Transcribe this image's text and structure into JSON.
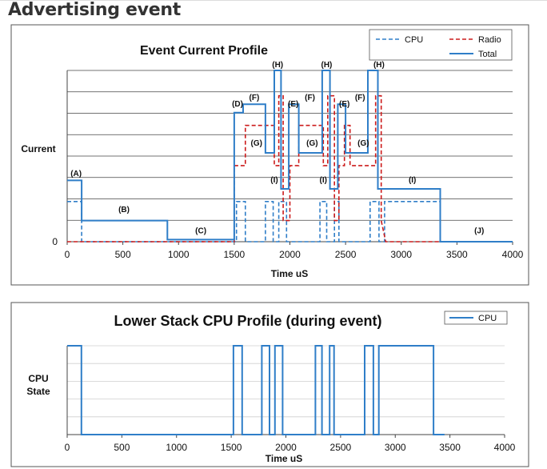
{
  "page": {
    "title": "Advertising event"
  },
  "colors": {
    "cpu": "#2f7ec8",
    "radio": "#cc1b1b",
    "total": "#2f7ec8",
    "grid": "#333333",
    "frame": "#555555"
  },
  "chart_data": [
    {
      "type": "line",
      "title": "Event Current Profile",
      "xlabel": "Time uS",
      "ylabel": "Current",
      "xlim": [
        0,
        4000
      ],
      "ylim": [
        0,
        8.1
      ],
      "xticks": [
        0,
        500,
        1000,
        1500,
        2000,
        2500,
        3000,
        3500,
        4000
      ],
      "yticks": [
        "0"
      ],
      "grid": true,
      "legend": "top-right",
      "series": [
        {
          "name": "CPU",
          "style": "dashed",
          "color": "#2f7ec8",
          "x": [
            0,
            130,
            130,
            1520,
            1520,
            1600,
            1600,
            1780,
            1780,
            1850,
            1850,
            1900,
            1900,
            1970,
            1970,
            2270,
            2270,
            2330,
            2330,
            2400,
            2400,
            2440,
            2440,
            2720,
            2720,
            2800,
            2800,
            2850,
            2850,
            3350,
            3350
          ],
          "y": [
            1.9,
            1.9,
            0,
            0,
            1.9,
            1.9,
            0,
            0,
            1.9,
            1.9,
            0,
            0,
            1.9,
            1.9,
            0,
            0,
            1.9,
            1.9,
            0,
            0,
            1.9,
            1.9,
            0,
            0,
            1.9,
            1.9,
            0,
            0,
            1.9,
            1.9,
            0
          ]
        },
        {
          "name": "Radio",
          "style": "dashed",
          "color": "#cc1b1b",
          "x": [
            0,
            1500,
            1500,
            1600,
            1600,
            1860,
            1860,
            1900,
            1900,
            1940,
            1940,
            2000,
            2000,
            2080,
            2080,
            2300,
            2300,
            2340,
            2340,
            2400,
            2400,
            2440,
            2440,
            2490,
            2490,
            2540,
            2540,
            2770,
            2770,
            2820,
            2820,
            2860,
            2860,
            4000
          ],
          "y": [
            0,
            0,
            3.6,
            3.6,
            5.5,
            5.5,
            3.6,
            3.6,
            6.9,
            6.9,
            1.0,
            1.0,
            3.6,
            3.6,
            5.5,
            5.5,
            3.6,
            3.6,
            6.9,
            6.9,
            1.0,
            1.0,
            3.6,
            3.6,
            5.5,
            5.5,
            3.6,
            3.6,
            6.9,
            6.9,
            1.0,
            0,
            0,
            0
          ]
        },
        {
          "name": "Total",
          "style": "solid",
          "color": "#2f7ec8",
          "x": [
            0,
            130,
            130,
            900,
            900,
            1500,
            1500,
            1580,
            1580,
            1780,
            1780,
            1860,
            1860,
            1920,
            1920,
            1990,
            1990,
            2080,
            2080,
            2290,
            2290,
            2360,
            2360,
            2430,
            2430,
            2500,
            2500,
            2700,
            2700,
            2790,
            2790,
            2860,
            2860,
            3350,
            3350,
            4000
          ],
          "y": [
            2.9,
            2.9,
            1.0,
            1.0,
            0.1,
            0.1,
            6.1,
            6.1,
            6.5,
            6.5,
            4.2,
            4.2,
            8.1,
            8.1,
            2.5,
            2.5,
            6.5,
            6.5,
            4.2,
            4.2,
            8.1,
            8.1,
            2.5,
            2.5,
            6.5,
            6.5,
            4.2,
            4.2,
            8.1,
            8.1,
            2.5,
            2.5,
            2.5,
            2.5,
            0,
            0
          ]
        }
      ],
      "annotations": [
        {
          "text": "(A)",
          "x": 80,
          "y": 2.95
        },
        {
          "text": "(B)",
          "x": 510,
          "y": 1.25
        },
        {
          "text": "(C)",
          "x": 1200,
          "y": 0.25
        },
        {
          "text": "(D)",
          "x": 1530,
          "y": 6.25
        },
        {
          "text": "(F)",
          "x": 1680,
          "y": 6.55
        },
        {
          "text": "(H)",
          "x": 1890,
          "y": 8.1
        },
        {
          "text": "(G)",
          "x": 1700,
          "y": 4.4
        },
        {
          "text": "(I)",
          "x": 1860,
          "y": 2.65
        },
        {
          "text": "(E)",
          "x": 2030,
          "y": 6.25
        },
        {
          "text": "(F)",
          "x": 2180,
          "y": 6.55
        },
        {
          "text": "(H)",
          "x": 2330,
          "y": 8.1
        },
        {
          "text": "(G)",
          "x": 2200,
          "y": 4.4
        },
        {
          "text": "(I)",
          "x": 2300,
          "y": 2.65
        },
        {
          "text": "(E)",
          "x": 2490,
          "y": 6.25
        },
        {
          "text": "(F)",
          "x": 2630,
          "y": 6.55
        },
        {
          "text": "(H)",
          "x": 2800,
          "y": 8.1
        },
        {
          "text": "(G)",
          "x": 2660,
          "y": 4.4
        },
        {
          "text": "(I)",
          "x": 3100,
          "y": 2.65
        },
        {
          "text": "(J)",
          "x": 3700,
          "y": 0.25
        }
      ]
    },
    {
      "type": "line",
      "title": "Lower Stack CPU Profile (during event)",
      "xlabel": "Time uS",
      "ylabel": "CPU State",
      "xlim": [
        0,
        4000
      ],
      "ylim": [
        0,
        1
      ],
      "xticks": [
        0,
        500,
        1000,
        1500,
        2000,
        2500,
        3000,
        3500,
        4000
      ],
      "grid": true,
      "legend": "top-right",
      "series": [
        {
          "name": "CPU",
          "style": "solid",
          "color": "#2f7ec8",
          "x": [
            0,
            130,
            130,
            1520,
            1520,
            1600,
            1600,
            1780,
            1780,
            1850,
            1850,
            1900,
            1900,
            1970,
            1970,
            2270,
            2270,
            2330,
            2330,
            2400,
            2400,
            2440,
            2440,
            2720,
            2720,
            2800,
            2800,
            2850,
            2850,
            3350,
            3350,
            3450
          ],
          "y": [
            1,
            1,
            0,
            0,
            1,
            1,
            0,
            0,
            1,
            1,
            0,
            0,
            1,
            1,
            0,
            0,
            1,
            1,
            0,
            0,
            1,
            1,
            0,
            0,
            1,
            1,
            0,
            0,
            1,
            1,
            0,
            0
          ]
        }
      ]
    }
  ]
}
